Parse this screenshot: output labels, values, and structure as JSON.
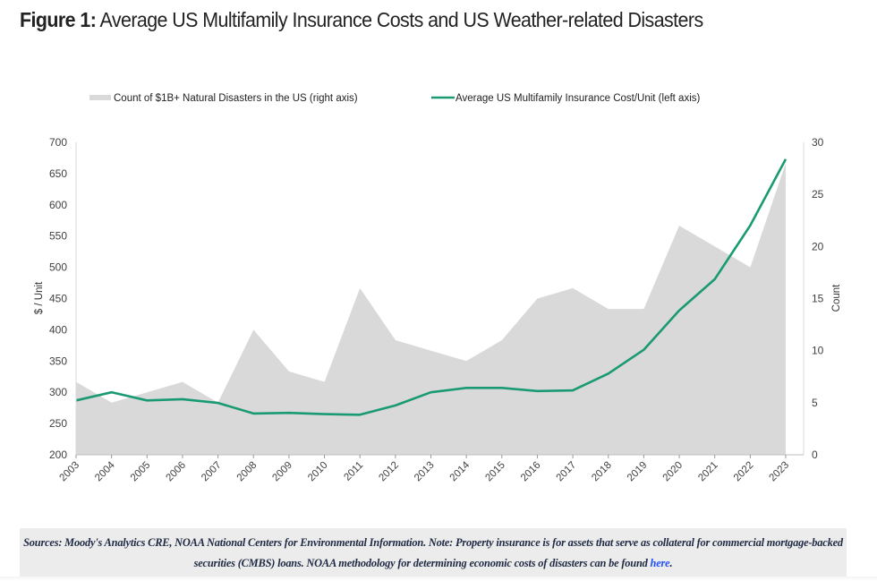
{
  "title": {
    "prefix": "Figure 1:",
    "text": " Average US Multifamily Insurance Costs and US Weather-related Disasters"
  },
  "footer": {
    "text": "Sources: Moody's Analytics CRE, NOAA National Centers for Environmental Information. Note: Property insurance is for assets that serve as collateral for commercial mortgage-backed securities (CMBS) loans. NOAA methodology for determining economic costs of disasters can be found ",
    "link_label": "here",
    "end": "."
  },
  "colors": {
    "line": "#1a9a73",
    "area": "#d9d9d9",
    "axis": "#bfbfbf",
    "tick_text": "#404040"
  },
  "chart_data": {
    "type": "line+area",
    "title": "Figure 1: Average US Multifamily Insurance Costs and US Weather-related Disasters",
    "x": [
      "2003",
      "2004",
      "2005",
      "2006",
      "2007",
      "2008",
      "2009",
      "2010",
      "2011",
      "2012",
      "2013",
      "2014",
      "2015",
      "2016",
      "2017",
      "2018",
      "2019",
      "2020",
      "2021",
      "2022",
      "2023"
    ],
    "series": [
      {
        "name": "Count of $1B+ Natural Disasters in the US (right axis)",
        "type": "area",
        "axis": "right",
        "values": [
          7,
          5,
          6,
          7,
          5,
          12,
          8,
          7,
          16,
          11,
          10,
          9,
          11,
          15,
          16,
          14,
          14,
          22,
          20,
          18,
          28
        ]
      },
      {
        "name": "Average US Multifamily Insurance Cost/Unit (left axis)",
        "type": "line",
        "axis": "left",
        "values": [
          287,
          300,
          287,
          289,
          283,
          266,
          267,
          265,
          264,
          279,
          300,
          307,
          307,
          302,
          303,
          330,
          368,
          431,
          481,
          567,
          673
        ]
      }
    ],
    "ylabel": "$ / Unit",
    "ylabel_right": "Count",
    "ylim": [
      200,
      700
    ],
    "ylim_right": [
      0,
      30
    ],
    "yticks": [
      200,
      250,
      300,
      350,
      400,
      450,
      500,
      550,
      600,
      650,
      700
    ],
    "yticks_right": [
      0,
      5,
      10,
      15,
      20,
      25,
      30
    ],
    "grid": false,
    "legend_position": "top"
  }
}
